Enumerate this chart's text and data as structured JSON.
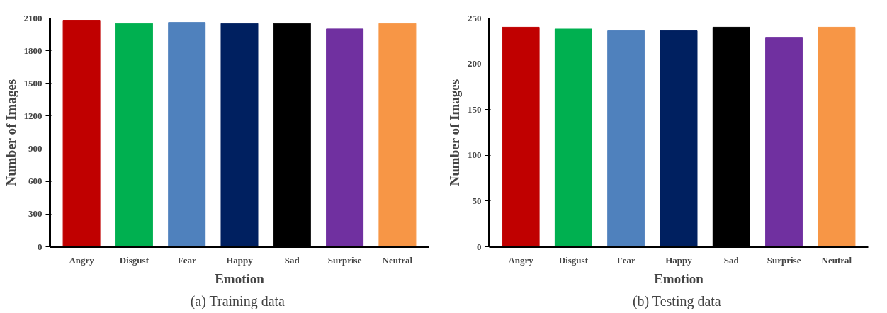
{
  "chart_data": [
    {
      "type": "bar",
      "title": "(a)  Training data",
      "xlabel": "Emotion",
      "ylabel": "Number of Images",
      "categories": [
        "Angry",
        "Disgust",
        "Fear",
        "Happy",
        "Sad",
        "Surprise",
        "Neutral"
      ],
      "values": [
        2080,
        2050,
        2060,
        2050,
        2050,
        2000,
        2050
      ],
      "colors": [
        "#c00000",
        "#00b050",
        "#4f81bd",
        "#002060",
        "#000000",
        "#7030a0",
        "#f79646"
      ],
      "ylim": [
        0,
        2100
      ],
      "yticks": [
        0,
        300,
        600,
        900,
        1200,
        1500,
        1800,
        2100
      ],
      "grid": false
    },
    {
      "type": "bar",
      "title": "(b)  Testing data",
      "xlabel": "Emotion",
      "ylabel": "Number of Images",
      "categories": [
        "Angry",
        "Disgust",
        "Fear",
        "Happy",
        "Sad",
        "Surprise",
        "Neutral"
      ],
      "values": [
        240,
        238,
        236,
        236,
        240,
        229,
        240
      ],
      "colors": [
        "#c00000",
        "#00b050",
        "#4f81bd",
        "#002060",
        "#000000",
        "#7030a0",
        "#f79646"
      ],
      "ylim": [
        0,
        250
      ],
      "yticks": [
        0,
        50,
        100,
        150,
        200,
        250
      ],
      "grid": false
    }
  ]
}
